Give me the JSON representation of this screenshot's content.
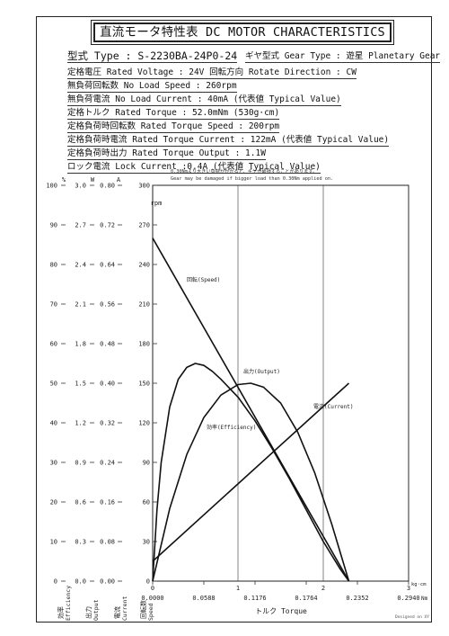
{
  "header": {
    "title": "直流モータ特性表 DC MOTOR CHARACTERISTICS",
    "type_line": "型式 Type : S-2230BA-24P0-24",
    "gear_line": "ギヤ型式 Gear Type : 遊星  Planetary Gear"
  },
  "specs": [
    "定格電圧 Rated Voltage : 24V   回転方向 Rotate Direction : CW",
    "無負荷回転数 No Load Speed : 260rpm",
    "無負荷電流 No Load Current : 40mA (代表値 Typical Value)",
    "定格トルク Rated Torque : 52.0mNm (530g·cm)",
    "定格負荷時回転数 Rated Torque Speed : 200rpm",
    "定格負荷時電流 Rated Torque Current : 122mA (代表値 Typical Value)",
    "定格負荷時出力 Rated Torque Output : 1.1W",
    "ロック電流 Lock Current :0.4A (代表値 Typical Value)"
  ],
  "notes": [
    "0.30Nmより大きい負荷がかかると、ギヤが破損することがあります。",
    "Gear may be damaged if bigger load than 0.30Nm applied on."
  ],
  "credit": "Designed on XY",
  "chart_data": {
    "type": "line",
    "xlabel": "トルク Torque",
    "x_units": [
      "kg·cm",
      "Nm"
    ],
    "x_ticks_kgcm": [
      "0",
      "1",
      "2",
      "3"
    ],
    "x_ticks_nm": [
      "0.0000",
      "0.0588",
      "0.1176",
      "0.1764",
      "0.2352",
      "0.2940"
    ],
    "xlim_kgcm": [
      0,
      3
    ],
    "axes": [
      {
        "unit": "%",
        "label": "効率 Efficiency",
        "ticks": [
          "100",
          "90",
          "80",
          "70",
          "60",
          "50",
          "40",
          "30",
          "20",
          "10",
          "0"
        ],
        "range": [
          0,
          100
        ]
      },
      {
        "unit": "W",
        "label": "出力 Output",
        "ticks": [
          "3.0",
          "2.7",
          "2.4",
          "2.1",
          "1.8",
          "1.5",
          "1.2",
          "0.9",
          "0.6",
          "0.3",
          "0.0"
        ],
        "range": [
          0,
          3.0
        ]
      },
      {
        "unit": "A",
        "label": "電流 Current",
        "ticks": [
          "0.80",
          "0.72",
          "0.64",
          "0.56",
          "0.48",
          "0.40",
          "0.32",
          "0.24",
          "0.16",
          "0.08",
          "0.00"
        ],
        "range": [
          0,
          0.8
        ]
      },
      {
        "unit": "rpm",
        "label": "回転数 Speed",
        "ticks": [
          "300",
          "270",
          "240",
          "210",
          "180",
          "150",
          "120",
          "90",
          "60",
          "30",
          "0"
        ],
        "range": [
          0,
          300
        ]
      }
    ],
    "grid": true,
    "series": [
      {
        "name": "回転(Speed)",
        "axis": "rpm",
        "x": [
          0,
          2.3
        ],
        "y": [
          260,
          0
        ]
      },
      {
        "name": "電流(Current)",
        "axis": "A",
        "x": [
          0,
          2.3
        ],
        "y": [
          0.04,
          0.4
        ]
      },
      {
        "name": "出力(Output)",
        "axis": "W",
        "x": [
          0,
          0.2,
          0.4,
          0.6,
          0.8,
          1.0,
          1.15,
          1.3,
          1.5,
          1.7,
          1.9,
          2.1,
          2.3
        ],
        "y": [
          0,
          0.55,
          0.96,
          1.24,
          1.41,
          1.49,
          1.5,
          1.47,
          1.35,
          1.13,
          0.82,
          0.43,
          0
        ]
      },
      {
        "name": "効率(Efficiency)",
        "axis": "%",
        "x": [
          0,
          0.05,
          0.1,
          0.2,
          0.3,
          0.4,
          0.5,
          0.6,
          0.7,
          0.8,
          1.0,
          1.2,
          1.4,
          1.6,
          1.8,
          2.0,
          2.2,
          2.3
        ],
        "y": [
          0,
          18,
          30,
          44,
          51,
          54,
          55,
          54.5,
          53,
          51,
          46.5,
          40.5,
          33.5,
          26,
          18,
          10,
          3,
          0
        ]
      }
    ]
  }
}
